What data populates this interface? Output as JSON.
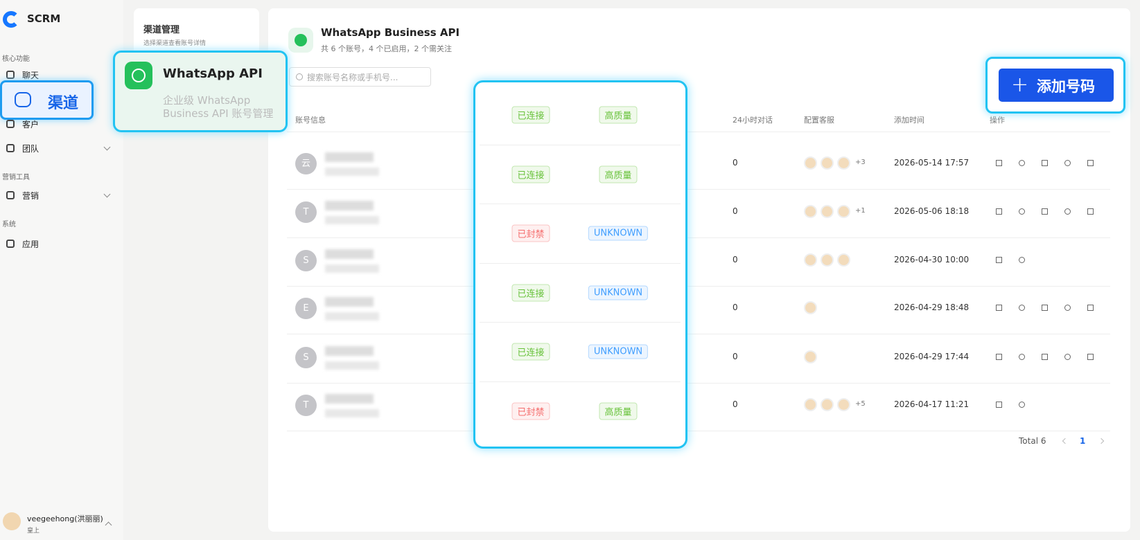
{
  "sidebar": {
    "brand": "SCRM",
    "sections": [
      {
        "title": "核心功能",
        "items": [
          "聊天",
          "渠道",
          "客户",
          "团队"
        ]
      },
      {
        "title": "营销工具",
        "items": [
          "营销"
        ]
      },
      {
        "title": "系统",
        "items": [
          "应用"
        ]
      }
    ],
    "user": {
      "name": "veegeehong(洪丽丽)",
      "role": "皇上"
    }
  },
  "channel_panel": {
    "title": "渠道管理",
    "subtitle": "选择渠道查看账号详情"
  },
  "channel_card": {
    "title": "WhatsApp API",
    "description": "企业级 WhatsApp Business API 账号管理"
  },
  "header": {
    "title": "WhatsApp Business API",
    "subtitle": "共 6 个账号，4 个已启用，2 个需关注",
    "search_placeholder": "搜索账号名称或手机号...",
    "add_button": "添加号码"
  },
  "table": {
    "columns": [
      "账号信息",
      "24小时对话",
      "配置客服",
      "添加时间",
      "操作"
    ],
    "rows": [
      {
        "avatar": "云",
        "status": "已连接",
        "quality": "高质量",
        "conversations_24h": 0,
        "agents": 3,
        "more_agents": "+3",
        "added": "2026-05-14 17:57"
      },
      {
        "avatar": "T",
        "status": "已连接",
        "quality": "高质量",
        "conversations_24h": 0,
        "agents": 3,
        "more_agents": "+1",
        "added": "2026-05-06 18:18"
      },
      {
        "avatar": "S",
        "status": "已封禁",
        "quality": "UNKNOWN",
        "conversations_24h": 0,
        "agents": 3,
        "added": "2026-04-30 10:00"
      },
      {
        "avatar": "E",
        "status": "已连接",
        "quality": "UNKNOWN",
        "conversations_24h": 0,
        "agents": 1,
        "added": "2026-04-29 18:48"
      },
      {
        "avatar": "S",
        "status": "已连接",
        "quality": "UNKNOWN",
        "conversations_24h": 0,
        "agents": 1,
        "added": "2026-04-29 17:44"
      },
      {
        "avatar": "T",
        "status": "已封禁",
        "quality": "高质量",
        "conversations_24h": 0,
        "agents": 3,
        "more_agents": "+5",
        "added": "2026-04-17 11:21"
      }
    ]
  },
  "pagination": {
    "total": "Total 6",
    "current": "1"
  }
}
